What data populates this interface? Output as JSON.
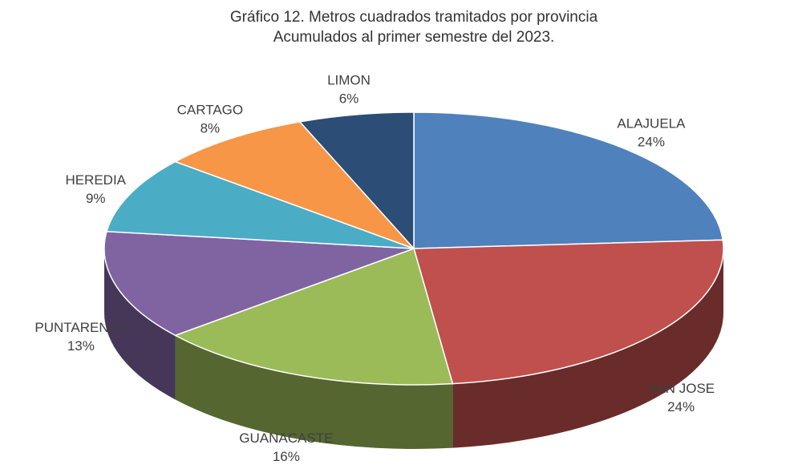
{
  "chart_data": {
    "type": "pie",
    "title": "Gráfico 12. Metros cuadrados tramitados por provincia",
    "subtitle": "Acumulados al primer semestre del 2023.",
    "categories": [
      "ALAJUELA",
      "SAN JOSE",
      "GUANACASTE",
      "PUNTARENAS",
      "HEREDIA",
      "CARTAGO",
      "LIMON"
    ],
    "values": [
      24,
      24,
      16,
      13,
      9,
      8,
      6
    ],
    "value_labels": [
      "24%",
      "24%",
      "16%",
      "13%",
      "9%",
      "8%",
      "6%"
    ],
    "colors": [
      "#4f81bd",
      "#c0504d",
      "#9bbb59",
      "#8064a2",
      "#4bacc6",
      "#f79646",
      "#2c4d75"
    ]
  }
}
